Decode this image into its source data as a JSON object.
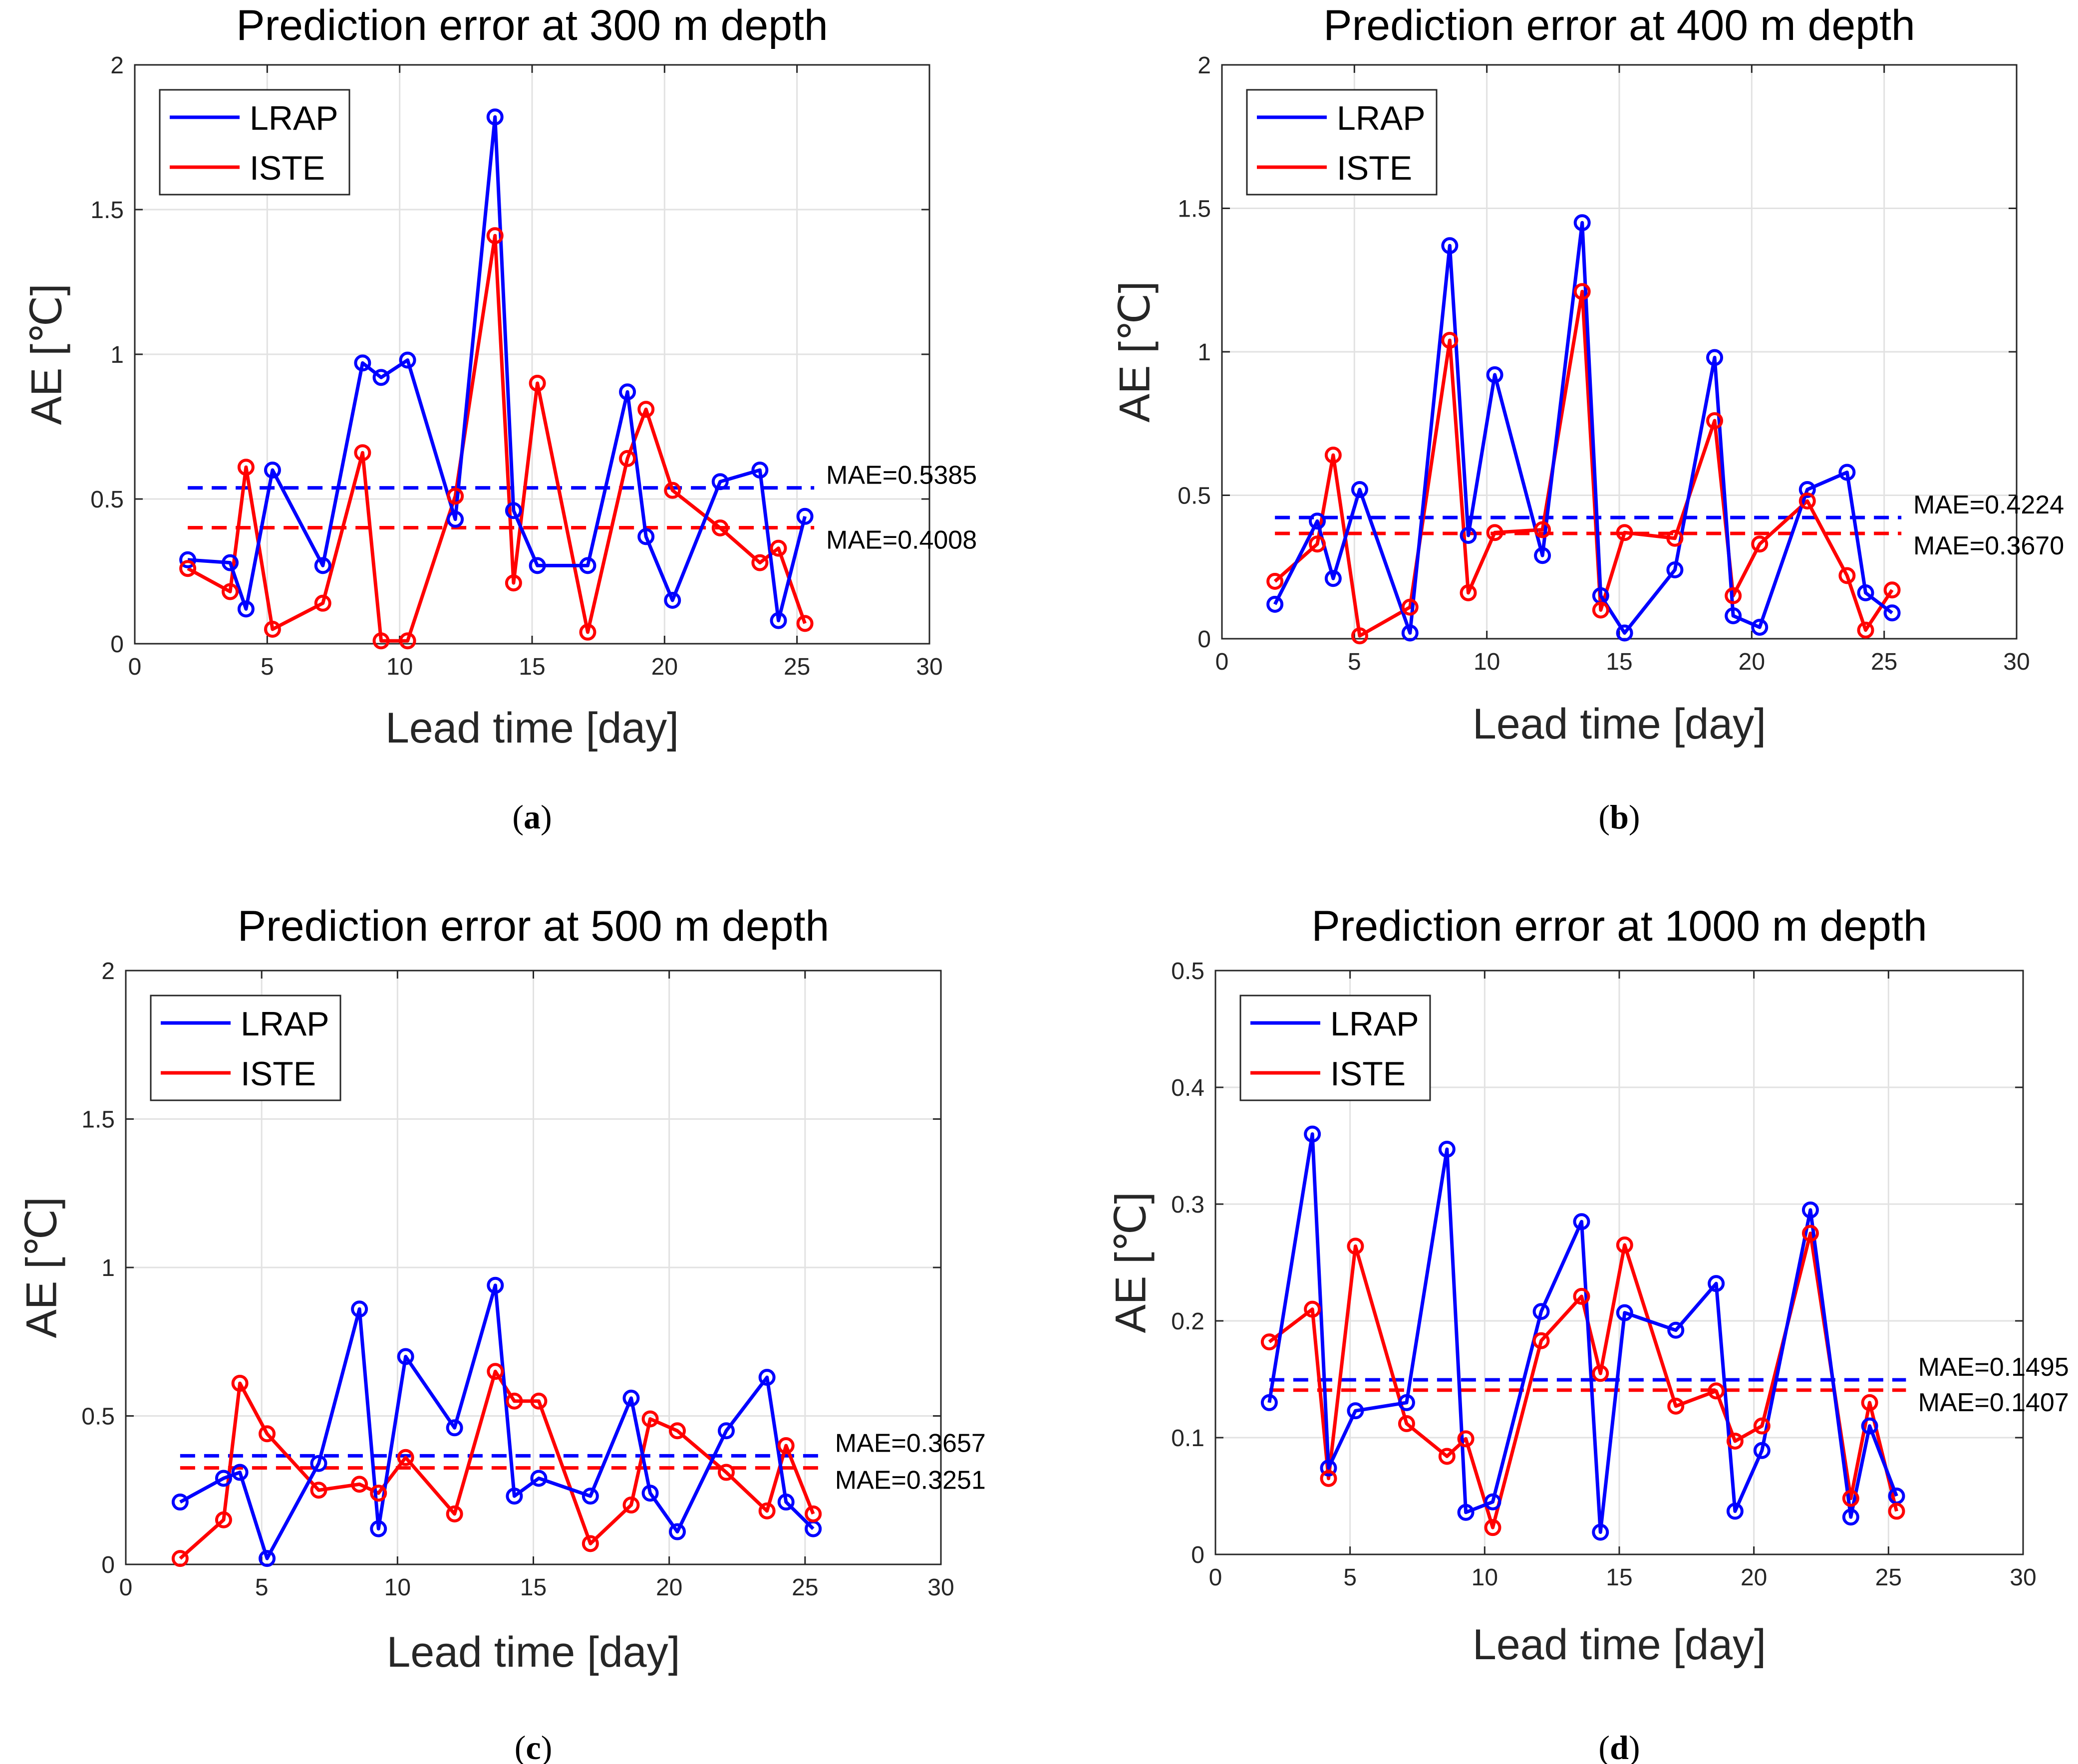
{
  "chart_data": [
    {
      "type": "line",
      "title": "Prediction error at 300 m depth",
      "xlabel": "Lead time [day]",
      "ylabel": "AE [℃]",
      "caption_letter": "a",
      "xlim": [
        0,
        30
      ],
      "ylim": [
        0,
        2
      ],
      "xticks": [
        0,
        5,
        10,
        15,
        20,
        25,
        30
      ],
      "xtick_labels": [
        "0",
        "5",
        "10",
        "15",
        "20",
        "25",
        "30"
      ],
      "yticks": [
        0,
        0.5,
        1,
        1.5,
        2
      ],
      "ytick_labels": [
        "0",
        "0.5",
        "1",
        "1.5",
        "2"
      ],
      "grid": true,
      "legend": "top-left",
      "x": [
        2,
        3.6,
        4.2,
        5.2,
        7.1,
        8.6,
        9.3,
        10.3,
        12.1,
        13.6,
        14.3,
        15.2,
        17.1,
        18.6,
        19.3,
        20.3,
        22.1,
        23.6,
        24.3,
        25.3
      ],
      "series": [
        {
          "name": "LRAP",
          "color": "#0000ff",
          "values": [
            0.29,
            0.28,
            0.12,
            0.6,
            0.27,
            0.97,
            0.92,
            0.98,
            0.43,
            1.82,
            0.46,
            0.27,
            0.27,
            0.87,
            0.37,
            0.15,
            0.56,
            0.6,
            0.08,
            0.44
          ],
          "mae": 0.5385,
          "mae_label": "MAE=0.5385"
        },
        {
          "name": "ISTE",
          "color": "#ff0000",
          "values": [
            0.26,
            0.18,
            0.61,
            0.05,
            0.14,
            0.66,
            0.01,
            0.01,
            0.51,
            1.41,
            0.21,
            0.9,
            0.04,
            0.64,
            0.81,
            0.53,
            0.4,
            0.28,
            0.33,
            0.07
          ],
          "mae": 0.4008,
          "mae_label": "MAE=0.4008"
        }
      ]
    },
    {
      "type": "line",
      "title": "Prediction error at 400 m depth",
      "xlabel": "Lead time [day]",
      "ylabel": "AE [℃]",
      "caption_letter": "b",
      "xlim": [
        0,
        30
      ],
      "ylim": [
        0,
        2
      ],
      "xticks": [
        0,
        5,
        10,
        15,
        20,
        25,
        30
      ],
      "xtick_labels": [
        "0",
        "5",
        "10",
        "15",
        "20",
        "25",
        "30"
      ],
      "yticks": [
        0,
        0.5,
        1,
        1.5,
        2
      ],
      "ytick_labels": [
        "0",
        "0.5",
        "1",
        "1.5",
        "2"
      ],
      "grid": true,
      "legend": "top-left",
      "x": [
        2,
        3.6,
        4.2,
        5.2,
        7.1,
        8.6,
        9.3,
        10.3,
        12.1,
        13.6,
        14.3,
        15.2,
        17.1,
        18.6,
        19.3,
        20.3,
        22.1,
        23.6,
        24.3,
        25.3
      ],
      "series": [
        {
          "name": "LRAP",
          "color": "#0000ff",
          "values": [
            0.12,
            0.41,
            0.21,
            0.52,
            0.02,
            1.37,
            0.36,
            0.92,
            0.29,
            1.45,
            0.15,
            0.02,
            0.24,
            0.98,
            0.08,
            0.04,
            0.52,
            0.58,
            0.16,
            0.09
          ],
          "mae": 0.4224,
          "mae_label": "MAE=0.4224"
        },
        {
          "name": "ISTE",
          "color": "#ff0000",
          "values": [
            0.2,
            0.33,
            0.64,
            0.01,
            0.11,
            1.04,
            0.16,
            0.37,
            0.38,
            1.21,
            0.1,
            0.37,
            0.35,
            0.76,
            0.15,
            0.33,
            0.48,
            0.22,
            0.03,
            0.17
          ],
          "mae": 0.367,
          "mae_label": "MAE=0.3670"
        }
      ]
    },
    {
      "type": "line",
      "title": "Prediction error at 500 m depth",
      "xlabel": "Lead time [day]",
      "ylabel": "AE [℃]",
      "caption_letter": "c",
      "xlim": [
        0,
        30
      ],
      "ylim": [
        0,
        2
      ],
      "xticks": [
        0,
        5,
        10,
        15,
        20,
        25,
        30
      ],
      "xtick_labels": [
        "0",
        "5",
        "10",
        "15",
        "20",
        "25",
        "30"
      ],
      "yticks": [
        0,
        0.5,
        1,
        1.5,
        2
      ],
      "ytick_labels": [
        "0",
        "0.5",
        "1",
        "1.5",
        "2"
      ],
      "grid": true,
      "legend": "top-left",
      "x": [
        2,
        3.6,
        4.2,
        5.2,
        7.1,
        8.6,
        9.3,
        10.3,
        12.1,
        13.6,
        14.3,
        15.2,
        17.1,
        18.6,
        19.3,
        20.3,
        22.1,
        23.6,
        24.3,
        25.3
      ],
      "series": [
        {
          "name": "LRAP",
          "color": "#0000ff",
          "values": [
            0.21,
            0.29,
            0.31,
            0.02,
            0.34,
            0.86,
            0.12,
            0.7,
            0.46,
            0.94,
            0.23,
            0.29,
            0.23,
            0.56,
            0.24,
            0.11,
            0.45,
            0.63,
            0.21,
            0.12
          ],
          "mae": 0.3657,
          "mae_label": "MAE=0.3657"
        },
        {
          "name": "ISTE",
          "color": "#ff0000",
          "values": [
            0.02,
            0.15,
            0.61,
            0.44,
            0.25,
            0.27,
            0.24,
            0.36,
            0.17,
            0.65,
            0.55,
            0.55,
            0.07,
            0.2,
            0.49,
            0.45,
            0.31,
            0.18,
            0.4,
            0.17
          ],
          "mae": 0.3251,
          "mae_label": "MAE=0.3251"
        }
      ]
    },
    {
      "type": "line",
      "title": "Prediction error at 1000 m depth",
      "xlabel": "Lead time [day]",
      "ylabel": "AE [℃]",
      "caption_letter": "d",
      "xlim": [
        0,
        30
      ],
      "ylim": [
        0,
        0.5
      ],
      "xticks": [
        0,
        5,
        10,
        15,
        20,
        25,
        30
      ],
      "xtick_labels": [
        "0",
        "5",
        "10",
        "15",
        "20",
        "25",
        "30"
      ],
      "yticks": [
        0,
        0.1,
        0.2,
        0.3,
        0.4,
        0.5
      ],
      "ytick_labels": [
        "0",
        "0.1",
        "0.2",
        "0.3",
        "0.4",
        "0.5"
      ],
      "grid": true,
      "legend": "top-left",
      "x": [
        2,
        3.6,
        4.2,
        5.2,
        7.1,
        8.6,
        9.3,
        10.3,
        12.1,
        13.6,
        14.3,
        15.2,
        17.1,
        18.6,
        19.3,
        20.3,
        22.1,
        23.6,
        24.3,
        25.3
      ],
      "series": [
        {
          "name": "LRAP",
          "color": "#0000ff",
          "values": [
            0.13,
            0.36,
            0.074,
            0.123,
            0.13,
            0.347,
            0.036,
            0.045,
            0.208,
            0.285,
            0.019,
            0.207,
            0.192,
            0.232,
            0.037,
            0.089,
            0.295,
            0.032,
            0.11,
            0.05
          ],
          "mae": 0.1495,
          "mae_label": "MAE=0.1495"
        },
        {
          "name": "ISTE",
          "color": "#ff0000",
          "values": [
            0.182,
            0.21,
            0.065,
            0.264,
            0.112,
            0.084,
            0.099,
            0.023,
            0.183,
            0.221,
            0.155,
            0.265,
            0.127,
            0.14,
            0.097,
            0.11,
            0.275,
            0.048,
            0.13,
            0.037
          ],
          "mae": 0.1407,
          "mae_label": "MAE=0.1407"
        }
      ]
    }
  ]
}
